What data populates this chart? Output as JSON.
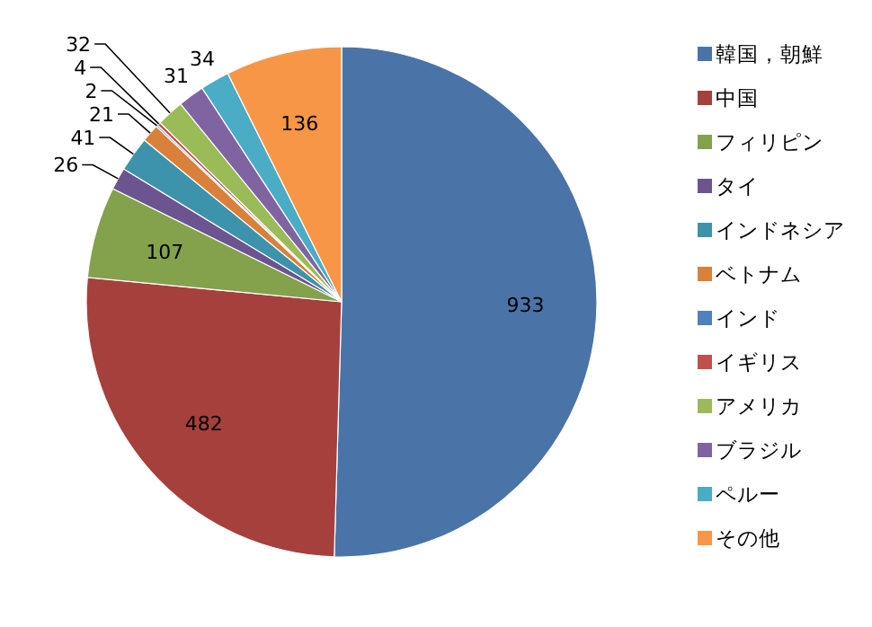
{
  "chart_data": {
    "type": "pie",
    "categories": [
      "韓国，朝鮮",
      "中国",
      "フィリピン",
      "タイ",
      "インドネシア",
      "ベトナム",
      "インド",
      "イギリス",
      "アメリカ",
      "ブラジル",
      "ペルー",
      "その他"
    ],
    "values": [
      933,
      482,
      107,
      26,
      41,
      21,
      2,
      4,
      32,
      31,
      34,
      136
    ],
    "colors": [
      "#4a74a8",
      "#a6403d",
      "#84a24c",
      "#6c5490",
      "#3d93ab",
      "#d9803a",
      "#4f81bd",
      "#c0504d",
      "#9bbb59",
      "#8064a2",
      "#4bacc6",
      "#f79646"
    ],
    "data_labels": true,
    "legend": "right"
  }
}
